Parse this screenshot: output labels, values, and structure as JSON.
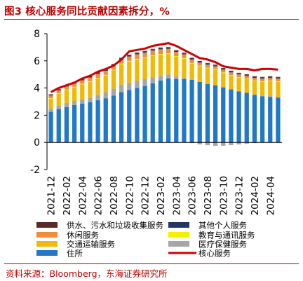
{
  "title": "图3  核心服务同比贡献因素拆分，%",
  "source": "资料来源：Bloomberg，东海证券研究所",
  "chart_data": {
    "type": "bar",
    "stacked": true,
    "title": "图3  核心服务同比贡献因素拆分，%",
    "xlabel": "",
    "ylabel": "",
    "ylim": [
      -2,
      8
    ],
    "yticks": [
      "-2",
      "0",
      "2",
      "4",
      "6",
      "8"
    ],
    "grid": false,
    "legend_position": "bottom",
    "tick_labels": [
      "2021-12",
      "2022-02",
      "2022-04",
      "2022-06",
      "2022-08",
      "2022-10",
      "2022-12",
      "2023-02",
      "2023-04",
      "2023-06",
      "2023-08",
      "2023-10",
      "2023-12",
      "2024-02",
      "2024-04"
    ],
    "categories": [
      "2021-12",
      "2022-01",
      "2022-02",
      "2022-03",
      "2022-04",
      "2022-05",
      "2022-06",
      "2022-07",
      "2022-08",
      "2022-09",
      "2022-10",
      "2022-11",
      "2022-12",
      "2023-01",
      "2023-02",
      "2023-03",
      "2023-04",
      "2023-05",
      "2023-06",
      "2023-07",
      "2023-08",
      "2023-09",
      "2023-10",
      "2023-11",
      "2023-12",
      "2024-01",
      "2024-02",
      "2024-03",
      "2024-04",
      "2024-05"
    ],
    "series": [
      {
        "name": "住所",
        "color": "#1f78c8",
        "kind": "bar",
        "values": [
          2.25,
          2.45,
          2.6,
          2.75,
          2.85,
          2.95,
          3.1,
          3.25,
          3.45,
          3.7,
          3.85,
          4.0,
          4.15,
          4.35,
          4.55,
          4.7,
          4.65,
          4.65,
          4.6,
          4.45,
          4.3,
          4.2,
          4.05,
          3.9,
          3.75,
          3.65,
          3.5,
          3.4,
          3.35,
          3.3
        ]
      },
      {
        "name": "医疗保健服务",
        "color": "#a6a6a6",
        "kind": "bar",
        "values": [
          0.25,
          0.28,
          0.3,
          0.3,
          0.32,
          0.35,
          0.4,
          0.42,
          0.5,
          0.55,
          0.55,
          0.55,
          0.5,
          0.45,
          0.35,
          0.3,
          0.2,
          0.1,
          -0.05,
          -0.15,
          -0.2,
          -0.25,
          -0.25,
          -0.2,
          -0.15,
          -0.1,
          -0.05,
          0.0,
          0.05,
          0.05
        ]
      },
      {
        "name": "交通运输服务",
        "color": "#f5b800",
        "kind": "bar",
        "values": [
          0.7,
          0.85,
          0.95,
          1.0,
          1.1,
          1.15,
          1.2,
          1.25,
          1.35,
          1.5,
          1.55,
          1.55,
          1.55,
          1.55,
          1.55,
          1.5,
          1.45,
          1.4,
          1.2,
          1.15,
          1.15,
          1.15,
          1.05,
          1.0,
          1.0,
          1.0,
          1.0,
          1.05,
          1.1,
          1.1
        ]
      },
      {
        "name": "教育与通讯服务",
        "color": "#f2f200",
        "kind": "bar",
        "values": [
          0.05,
          0.05,
          0.05,
          0.05,
          0.05,
          0.05,
          0.05,
          0.05,
          0.05,
          0.05,
          0.05,
          0.05,
          0.05,
          0.05,
          0.05,
          0.05,
          0.05,
          0.05,
          0.05,
          0.05,
          0.05,
          0.05,
          0.05,
          0.05,
          0.05,
          0.05,
          0.05,
          0.05,
          0.05,
          0.05
        ]
      },
      {
        "name": "休闲服务",
        "color": "#f08c3a",
        "kind": "bar",
        "values": [
          0.2,
          0.2,
          0.22,
          0.23,
          0.25,
          0.27,
          0.28,
          0.3,
          0.3,
          0.3,
          0.32,
          0.33,
          0.35,
          0.35,
          0.35,
          0.33,
          0.3,
          0.28,
          0.25,
          0.22,
          0.22,
          0.2,
          0.2,
          0.2,
          0.2,
          0.2,
          0.2,
          0.2,
          0.2,
          0.2
        ]
      },
      {
        "name": "其他个人服务",
        "color": "#1f3864",
        "kind": "bar",
        "values": [
          0.05,
          0.05,
          0.05,
          0.06,
          0.06,
          0.06,
          0.07,
          0.07,
          0.07,
          0.08,
          0.08,
          0.08,
          0.08,
          0.08,
          0.08,
          0.08,
          0.08,
          0.07,
          0.07,
          0.07,
          0.07,
          0.07,
          0.07,
          0.07,
          0.07,
          0.07,
          0.07,
          0.07,
          0.07,
          0.07
        ]
      },
      {
        "name": "供水、污水和垃圾收集服务",
        "color": "#5a2a2a",
        "kind": "bar",
        "values": [
          0.04,
          0.04,
          0.04,
          0.04,
          0.04,
          0.04,
          0.05,
          0.05,
          0.05,
          0.05,
          0.05,
          0.05,
          0.05,
          0.05,
          0.05,
          0.05,
          0.05,
          0.05,
          0.05,
          0.05,
          0.05,
          0.05,
          0.05,
          0.05,
          0.05,
          0.05,
          0.05,
          0.05,
          0.05,
          0.05
        ]
      },
      {
        "name": "核心服务",
        "color": "#d00000",
        "kind": "line",
        "values": [
          3.7,
          4.0,
          4.2,
          4.4,
          4.7,
          4.9,
          5.2,
          5.4,
          5.65,
          6.1,
          6.7,
          6.8,
          6.9,
          7.1,
          7.2,
          7.3,
          7.1,
          6.8,
          6.5,
          6.2,
          6.1,
          5.9,
          5.6,
          5.5,
          5.4,
          5.4,
          5.3,
          5.4,
          5.4,
          5.35
        ]
      }
    ],
    "legend": [
      {
        "name": "供水、污水和垃圾收集服务",
        "color": "#5a2a2a",
        "kind": "bar"
      },
      {
        "name": "其他个人服务",
        "color": "#1f3864",
        "kind": "bar"
      },
      {
        "name": "休闲服务",
        "color": "#f08c3a",
        "kind": "bar"
      },
      {
        "name": "教育与通讯服务",
        "color": "#f2f200",
        "kind": "bar"
      },
      {
        "name": "交通运输服务",
        "color": "#f5b800",
        "kind": "bar"
      },
      {
        "name": "医疗保健服务",
        "color": "#a6a6a6",
        "kind": "bar"
      },
      {
        "name": "住所",
        "color": "#1f78c8",
        "kind": "bar"
      },
      {
        "name": "核心服务",
        "color": "#d00000",
        "kind": "line"
      }
    ]
  }
}
